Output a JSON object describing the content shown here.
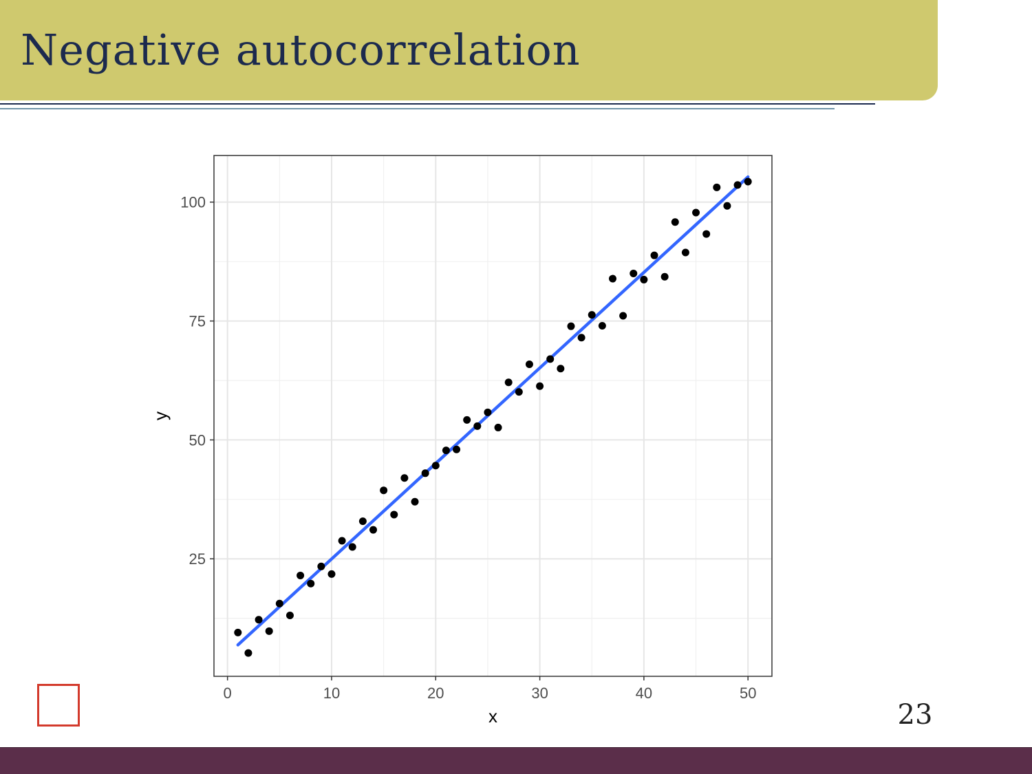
{
  "slide": {
    "title": "Negative autocorrelation",
    "page_number": "23",
    "seal_chars": [
      "",
      "",
      "",
      ""
    ]
  },
  "colors": {
    "title_band": "#cfc96e",
    "title_text": "#1c2a4e",
    "footer_band": "#5b2e4a",
    "fit_line": "#3366ff",
    "points": "#000000",
    "seal": "#d33a2c"
  },
  "chart_data": {
    "type": "scatter",
    "title": "",
    "xlabel": "x",
    "ylabel": "y",
    "xlim": [
      -1.3,
      52.3
    ],
    "ylim": [
      0.3,
      109.8
    ],
    "x_ticks": [
      0,
      10,
      20,
      30,
      40,
      50
    ],
    "y_ticks": [
      25,
      50,
      75,
      100
    ],
    "grid": true,
    "points": [
      [
        1,
        9.5
      ],
      [
        2,
        5.2
      ],
      [
        3,
        12.2
      ],
      [
        4,
        9.8
      ],
      [
        5,
        15.6
      ],
      [
        6,
        13.1
      ],
      [
        7,
        21.5
      ],
      [
        8,
        19.8
      ],
      [
        9,
        23.4
      ],
      [
        10,
        21.8
      ],
      [
        11,
        28.8
      ],
      [
        12,
        27.5
      ],
      [
        13,
        32.9
      ],
      [
        14,
        31.1
      ],
      [
        15,
        39.4
      ],
      [
        16,
        34.3
      ],
      [
        17,
        42.0
      ],
      [
        18,
        37.0
      ],
      [
        19,
        43.0
      ],
      [
        20,
        44.6
      ],
      [
        21,
        47.8
      ],
      [
        22,
        48.0
      ],
      [
        23,
        54.2
      ],
      [
        24,
        52.9
      ],
      [
        25,
        55.8
      ],
      [
        26,
        52.6
      ],
      [
        27,
        62.1
      ],
      [
        28,
        60.1
      ],
      [
        29,
        65.9
      ],
      [
        30,
        61.3
      ],
      [
        31,
        67.0
      ],
      [
        32,
        65.0
      ],
      [
        33,
        73.9
      ],
      [
        34,
        71.5
      ],
      [
        35,
        76.3
      ],
      [
        36,
        74.0
      ],
      [
        37,
        83.9
      ],
      [
        38,
        76.1
      ],
      [
        39,
        85.0
      ],
      [
        40,
        83.7
      ],
      [
        41,
        88.8
      ],
      [
        42,
        84.3
      ],
      [
        43,
        95.8
      ],
      [
        44,
        89.4
      ],
      [
        45,
        97.8
      ],
      [
        46,
        93.3
      ],
      [
        47,
        103.1
      ],
      [
        48,
        99.2
      ],
      [
        49,
        103.6
      ],
      [
        50,
        104.3
      ]
    ],
    "fit_line": {
      "x": [
        1,
        50
      ],
      "y": [
        6.9,
        105.3
      ]
    }
  }
}
